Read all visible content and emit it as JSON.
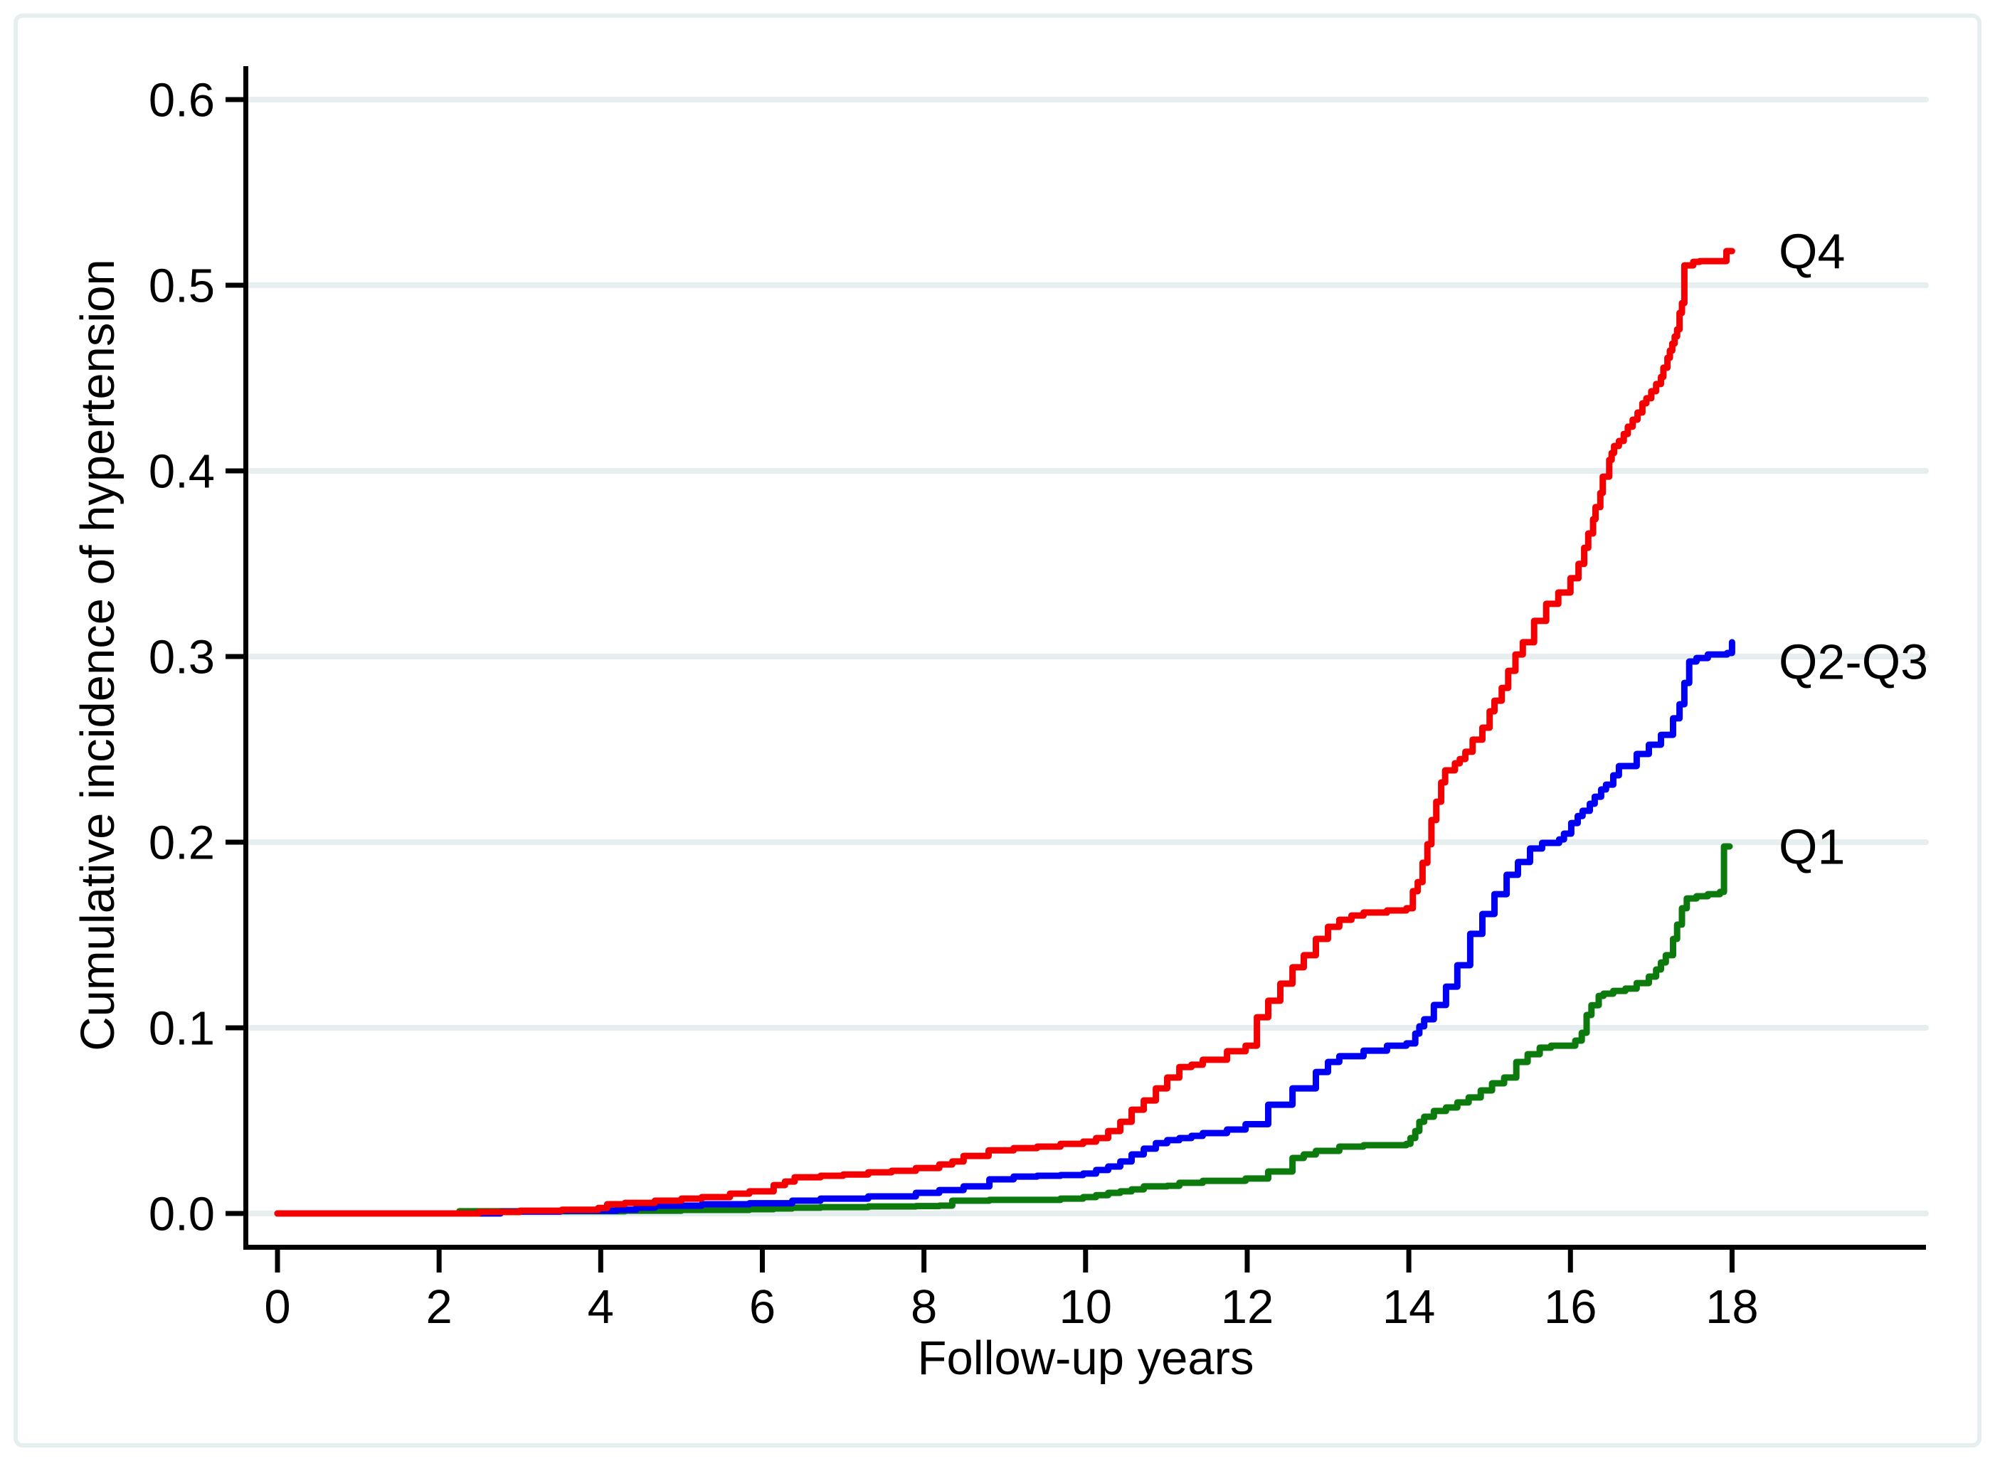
{
  "chart_data": {
    "type": "line",
    "subtype": "step-cumulative-incidence",
    "title": "",
    "xlabel": "Follow-up years",
    "ylabel": "Cumulative incidence of hypertension",
    "xlim": [
      0,
      18
    ],
    "ylim": [
      0,
      0.6
    ],
    "x_ticks": [
      0,
      2,
      4,
      6,
      8,
      10,
      12,
      14,
      16,
      18
    ],
    "x_tick_labels": [
      "0",
      "2",
      "4",
      "6",
      "8",
      "10",
      "12",
      "14",
      "16",
      "18"
    ],
    "y_ticks": [
      0.0,
      0.1,
      0.2,
      0.3,
      0.4,
      0.5,
      0.6
    ],
    "y_tick_labels": [
      "0.0",
      "0.1",
      "0.2",
      "0.3",
      "0.4",
      "0.5",
      "0.6"
    ],
    "grid": "horizontal",
    "legend_position": "right-of-curve-ends",
    "colors": {
      "q4": "#f40000",
      "q2q3": "#0000f4",
      "q1": "#0c7a0c",
      "gridline": "#e7eef0",
      "axis": "#000000",
      "background": "#ffffff"
    },
    "series": [
      {
        "name": "Q4",
        "color": "#f40000",
        "end_value": 0.518,
        "points": [
          [
            0,
            0
          ],
          [
            2.49,
            0.0008
          ],
          [
            3.0,
            0.0015
          ],
          [
            3.52,
            0.002
          ],
          [
            3.97,
            0.003
          ],
          [
            4.08,
            0.005
          ],
          [
            4.3,
            0.0057
          ],
          [
            4.67,
            0.0069
          ],
          [
            5.0,
            0.008
          ],
          [
            5.25,
            0.0088
          ],
          [
            5.6,
            0.0107
          ],
          [
            5.84,
            0.0119
          ],
          [
            6.14,
            0.0153
          ],
          [
            6.28,
            0.0172
          ],
          [
            6.4,
            0.0195
          ],
          [
            6.72,
            0.0203
          ],
          [
            7.0,
            0.021
          ],
          [
            7.31,
            0.0222
          ],
          [
            7.6,
            0.023
          ],
          [
            7.9,
            0.0245
          ],
          [
            8.19,
            0.0264
          ],
          [
            8.35,
            0.028
          ],
          [
            8.49,
            0.031
          ],
          [
            8.8,
            0.034
          ],
          [
            9.11,
            0.0352
          ],
          [
            9.4,
            0.036
          ],
          [
            9.69,
            0.0375
          ],
          [
            9.97,
            0.0387
          ],
          [
            10.13,
            0.0406
          ],
          [
            10.28,
            0.0444
          ],
          [
            10.43,
            0.0494
          ],
          [
            10.57,
            0.0559
          ],
          [
            10.72,
            0.0609
          ],
          [
            10.87,
            0.0674
          ],
          [
            11.01,
            0.0732
          ],
          [
            11.16,
            0.0789
          ],
          [
            11.31,
            0.0801
          ],
          [
            11.45,
            0.0828
          ],
          [
            11.75,
            0.0874
          ],
          [
            11.98,
            0.0904
          ],
          [
            12.12,
            0.1057
          ],
          [
            12.26,
            0.1146
          ],
          [
            12.41,
            0.1238
          ],
          [
            12.56,
            0.1326
          ],
          [
            12.7,
            0.1391
          ],
          [
            12.85,
            0.1479
          ],
          [
            13.0,
            0.1544
          ],
          [
            13.14,
            0.1582
          ],
          [
            13.29,
            0.1605
          ],
          [
            13.44,
            0.1621
          ],
          [
            13.73,
            0.1632
          ],
          [
            13.97,
            0.1644
          ],
          [
            14.05,
            0.1736
          ],
          [
            14.11,
            0.1785
          ],
          [
            14.17,
            0.1889
          ],
          [
            14.23,
            0.1989
          ],
          [
            14.28,
            0.2119
          ],
          [
            14.34,
            0.2218
          ],
          [
            14.4,
            0.2322
          ],
          [
            14.45,
            0.2387
          ],
          [
            14.57,
            0.2425
          ],
          [
            14.63,
            0.2448
          ],
          [
            14.7,
            0.2487
          ],
          [
            14.79,
            0.2552
          ],
          [
            14.91,
            0.2617
          ],
          [
            15.0,
            0.2705
          ],
          [
            15.06,
            0.2762
          ],
          [
            15.15,
            0.2831
          ],
          [
            15.23,
            0.2923
          ],
          [
            15.32,
            0.3011
          ],
          [
            15.41,
            0.3077
          ],
          [
            15.55,
            0.3192
          ],
          [
            15.7,
            0.3284
          ],
          [
            15.85,
            0.3345
          ],
          [
            16.0,
            0.3422
          ],
          [
            16.1,
            0.3499
          ],
          [
            16.17,
            0.3586
          ],
          [
            16.22,
            0.3663
          ],
          [
            16.28,
            0.374
          ],
          [
            16.31,
            0.3805
          ],
          [
            16.37,
            0.3881
          ],
          [
            16.4,
            0.3969
          ],
          [
            16.48,
            0.4059
          ],
          [
            16.51,
            0.4096
          ],
          [
            16.54,
            0.4134
          ],
          [
            16.6,
            0.4161
          ],
          [
            16.66,
            0.4199
          ],
          [
            16.71,
            0.4238
          ],
          [
            16.77,
            0.4276
          ],
          [
            16.83,
            0.4314
          ],
          [
            16.89,
            0.4364
          ],
          [
            16.94,
            0.4391
          ],
          [
            17.0,
            0.4429
          ],
          [
            17.06,
            0.4468
          ],
          [
            17.12,
            0.4506
          ],
          [
            17.15,
            0.4556
          ],
          [
            17.2,
            0.4609
          ],
          [
            17.23,
            0.4648
          ],
          [
            17.26,
            0.4686
          ],
          [
            17.29,
            0.4724
          ],
          [
            17.32,
            0.4762
          ],
          [
            17.35,
            0.4851
          ],
          [
            17.38,
            0.4904
          ],
          [
            17.41,
            0.5107
          ],
          [
            17.52,
            0.5126
          ],
          [
            17.6,
            0.513
          ],
          [
            17.93,
            0.5184
          ],
          [
            18.0,
            0.5184
          ]
        ]
      },
      {
        "name": "Q2-Q3",
        "color": "#0000f4",
        "end_value": 0.308,
        "points": [
          [
            0,
            0
          ],
          [
            2.76,
            0.001
          ],
          [
            3.5,
            0.0015
          ],
          [
            4.2,
            0.002
          ],
          [
            4.44,
            0.0031
          ],
          [
            4.67,
            0.0042
          ],
          [
            5.25,
            0.005
          ],
          [
            5.84,
            0.0055
          ],
          [
            6.37,
            0.0069
          ],
          [
            6.72,
            0.008
          ],
          [
            7.31,
            0.0092
          ],
          [
            7.9,
            0.0111
          ],
          [
            8.19,
            0.0126
          ],
          [
            8.49,
            0.0146
          ],
          [
            8.81,
            0.0184
          ],
          [
            9.11,
            0.0199
          ],
          [
            9.4,
            0.0203
          ],
          [
            9.69,
            0.0207
          ],
          [
            9.97,
            0.0215
          ],
          [
            10.13,
            0.0234
          ],
          [
            10.28,
            0.0253
          ],
          [
            10.43,
            0.028
          ],
          [
            10.57,
            0.0318
          ],
          [
            10.72,
            0.0349
          ],
          [
            10.87,
            0.0379
          ],
          [
            11.01,
            0.0395
          ],
          [
            11.16,
            0.0406
          ],
          [
            11.31,
            0.0418
          ],
          [
            11.45,
            0.0433
          ],
          [
            11.75,
            0.0452
          ],
          [
            11.98,
            0.0481
          ],
          [
            12.26,
            0.0586
          ],
          [
            12.56,
            0.0674
          ],
          [
            12.85,
            0.0762
          ],
          [
            13.0,
            0.0816
          ],
          [
            13.14,
            0.0847
          ],
          [
            13.44,
            0.0877
          ],
          [
            13.73,
            0.0904
          ],
          [
            13.97,
            0.0916
          ],
          [
            14.08,
            0.0969
          ],
          [
            14.13,
            0.1008
          ],
          [
            14.19,
            0.1046
          ],
          [
            14.31,
            0.1123
          ],
          [
            14.46,
            0.1222
          ],
          [
            14.6,
            0.1337
          ],
          [
            14.76,
            0.1506
          ],
          [
            14.91,
            0.1613
          ],
          [
            15.06,
            0.172
          ],
          [
            15.21,
            0.1824
          ],
          [
            15.35,
            0.1893
          ],
          [
            15.5,
            0.1966
          ],
          [
            15.65,
            0.1996
          ],
          [
            15.86,
            0.2015
          ],
          [
            15.92,
            0.2046
          ],
          [
            16.01,
            0.2103
          ],
          [
            16.09,
            0.2141
          ],
          [
            16.15,
            0.2169
          ],
          [
            16.24,
            0.2207
          ],
          [
            16.3,
            0.2245
          ],
          [
            16.38,
            0.2284
          ],
          [
            16.44,
            0.231
          ],
          [
            16.53,
            0.236
          ],
          [
            16.6,
            0.241
          ],
          [
            16.82,
            0.2475
          ],
          [
            16.97,
            0.2525
          ],
          [
            17.12,
            0.2578
          ],
          [
            17.27,
            0.2667
          ],
          [
            17.35,
            0.2743
          ],
          [
            17.41,
            0.2858
          ],
          [
            17.47,
            0.2973
          ],
          [
            17.56,
            0.2992
          ],
          [
            17.7,
            0.3011
          ],
          [
            17.94,
            0.3019
          ],
          [
            18.0,
            0.3077
          ]
        ]
      },
      {
        "name": "Q1",
        "color": "#0c7a0c",
        "end_value": 0.198,
        "points": [
          [
            0,
            0
          ],
          [
            2.25,
            0.0012
          ],
          [
            4.3,
            0.0015
          ],
          [
            5.0,
            0.0019
          ],
          [
            5.84,
            0.0023
          ],
          [
            6.14,
            0.0027
          ],
          [
            6.37,
            0.0031
          ],
          [
            6.72,
            0.0034
          ],
          [
            7.31,
            0.0038
          ],
          [
            7.9,
            0.004
          ],
          [
            8.19,
            0.0042
          ],
          [
            8.35,
            0.0069
          ],
          [
            8.81,
            0.0073
          ],
          [
            9.69,
            0.008
          ],
          [
            9.97,
            0.0088
          ],
          [
            10.13,
            0.0099
          ],
          [
            10.28,
            0.0111
          ],
          [
            10.43,
            0.0119
          ],
          [
            10.57,
            0.013
          ],
          [
            10.72,
            0.0146
          ],
          [
            11.01,
            0.0149
          ],
          [
            11.16,
            0.0165
          ],
          [
            11.45,
            0.0176
          ],
          [
            11.98,
            0.0188
          ],
          [
            12.26,
            0.0226
          ],
          [
            12.56,
            0.0299
          ],
          [
            12.7,
            0.0318
          ],
          [
            12.85,
            0.0337
          ],
          [
            13.14,
            0.036
          ],
          [
            13.44,
            0.0368
          ],
          [
            13.97,
            0.0375
          ],
          [
            14.02,
            0.0406
          ],
          [
            14.08,
            0.0444
          ],
          [
            14.13,
            0.0494
          ],
          [
            14.19,
            0.0521
          ],
          [
            14.31,
            0.0552
          ],
          [
            14.46,
            0.0571
          ],
          [
            14.6,
            0.0598
          ],
          [
            14.74,
            0.0625
          ],
          [
            14.89,
            0.0663
          ],
          [
            15.03,
            0.0701
          ],
          [
            15.18,
            0.0732
          ],
          [
            15.33,
            0.0816
          ],
          [
            15.47,
            0.0858
          ],
          [
            15.62,
            0.0893
          ],
          [
            15.76,
            0.0904
          ],
          [
            16.06,
            0.0931
          ],
          [
            16.14,
            0.0973
          ],
          [
            16.2,
            0.1069
          ],
          [
            16.26,
            0.1122
          ],
          [
            16.35,
            0.1172
          ],
          [
            16.41,
            0.1184
          ],
          [
            16.53,
            0.1199
          ],
          [
            16.68,
            0.1211
          ],
          [
            16.82,
            0.1241
          ],
          [
            16.97,
            0.1276
          ],
          [
            17.06,
            0.1314
          ],
          [
            17.12,
            0.1352
          ],
          [
            17.18,
            0.1391
          ],
          [
            17.27,
            0.1479
          ],
          [
            17.32,
            0.1556
          ],
          [
            17.38,
            0.1644
          ],
          [
            17.44,
            0.1697
          ],
          [
            17.56,
            0.1709
          ],
          [
            17.7,
            0.172
          ],
          [
            17.85,
            0.1732
          ],
          [
            17.9,
            0.1977
          ],
          [
            17.97,
            0.1977
          ]
        ]
      }
    ]
  }
}
